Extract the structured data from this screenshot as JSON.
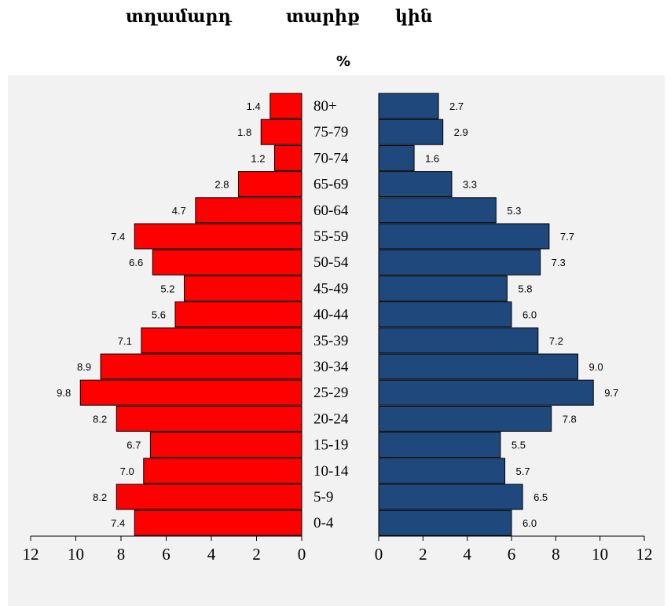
{
  "header": {
    "left_label": "տղամարդ",
    "middle_label": "տարիք",
    "right_label": "կին",
    "unit": "%"
  },
  "chart_data": {
    "type": "bar",
    "orientation": "horizontal",
    "categories": [
      "80+",
      "75-79",
      "70-74",
      "65-69",
      "60-64",
      "55-59",
      "50-54",
      "45-49",
      "40-44",
      "35-39",
      "30-34",
      "25-29",
      "20-24",
      "15-19",
      "10-14",
      "5-9",
      "0-4"
    ],
    "series": [
      {
        "name": "տղամարդ",
        "color": "#ff0000",
        "values": [
          1.4,
          1.8,
          1.2,
          2.8,
          4.7,
          7.4,
          6.6,
          5.2,
          5.6,
          7.1,
          8.9,
          9.8,
          8.2,
          6.7,
          7.0,
          8.2,
          7.4
        ]
      },
      {
        "name": "կին",
        "color": "#1f497d",
        "values": [
          2.7,
          2.9,
          1.6,
          3.3,
          5.3,
          7.7,
          7.3,
          5.8,
          6.0,
          7.2,
          9.0,
          9.7,
          7.8,
          5.5,
          5.7,
          6.5,
          6.0
        ]
      }
    ],
    "value_labels": {
      "left": [
        "1.4",
        "1.8",
        "1.2",
        "2.8",
        "4.7",
        "7.4",
        "6.6",
        "5.2",
        "5.6",
        "7.1",
        "8.9",
        "9.8",
        "8.2",
        "6.7",
        "7.0",
        "8.2",
        "7.4"
      ],
      "right": [
        "2.7",
        "2.9",
        "1.6",
        "3.3",
        "5.3",
        "7.7",
        "7.3",
        "5.8",
        "6.0",
        "7.2",
        "9.0",
        "9.7",
        "7.8",
        "5.5",
        "5.7",
        "6.5",
        "6.0"
      ]
    },
    "left_axis": {
      "range": [
        12,
        0
      ],
      "ticks": [
        "12",
        "10",
        "8",
        "6",
        "4",
        "2",
        "0"
      ]
    },
    "right_axis": {
      "range": [
        0,
        12
      ],
      "ticks": [
        "0",
        "2",
        "4",
        "6",
        "8",
        "10",
        "12"
      ]
    },
    "grid": false,
    "background": "#f2f2f2"
  }
}
